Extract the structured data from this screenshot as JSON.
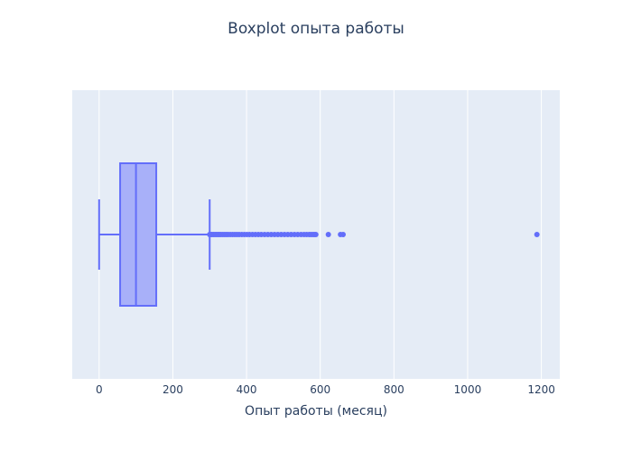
{
  "chart_data": {
    "type": "box",
    "title": "Boxplot опыта работы",
    "xlabel": "Опыт работы (месяц)",
    "ylabel": "",
    "orientation": "horizontal",
    "xlim": [
      -73,
      1250
    ],
    "xticks": [
      0,
      200,
      400,
      600,
      800,
      1000,
      1200
    ],
    "xtick_labels": [
      "0",
      "200",
      "400",
      "600",
      "800",
      "1000",
      "1200"
    ],
    "grid": true,
    "box": {
      "min": 0,
      "q1": 57,
      "median": 100,
      "q3": 155,
      "max": 300,
      "outliers": [
        300,
        303,
        306,
        310,
        314,
        318,
        322,
        326,
        330,
        335,
        340,
        345,
        350,
        356,
        362,
        368,
        374,
        380,
        387,
        394,
        401,
        408,
        416,
        424,
        432,
        440,
        449,
        458,
        467,
        476,
        485,
        494,
        503,
        512,
        521,
        530,
        539,
        548,
        556,
        563,
        570,
        575,
        580,
        584,
        588,
        622,
        655,
        662,
        1188
      ]
    },
    "colors": {
      "box_line": "#636efa",
      "box_fill": "#a8b0f9",
      "plot_bg": "#e5ecf6",
      "grid": "#ffffff",
      "text": "#2a3f5f"
    }
  }
}
